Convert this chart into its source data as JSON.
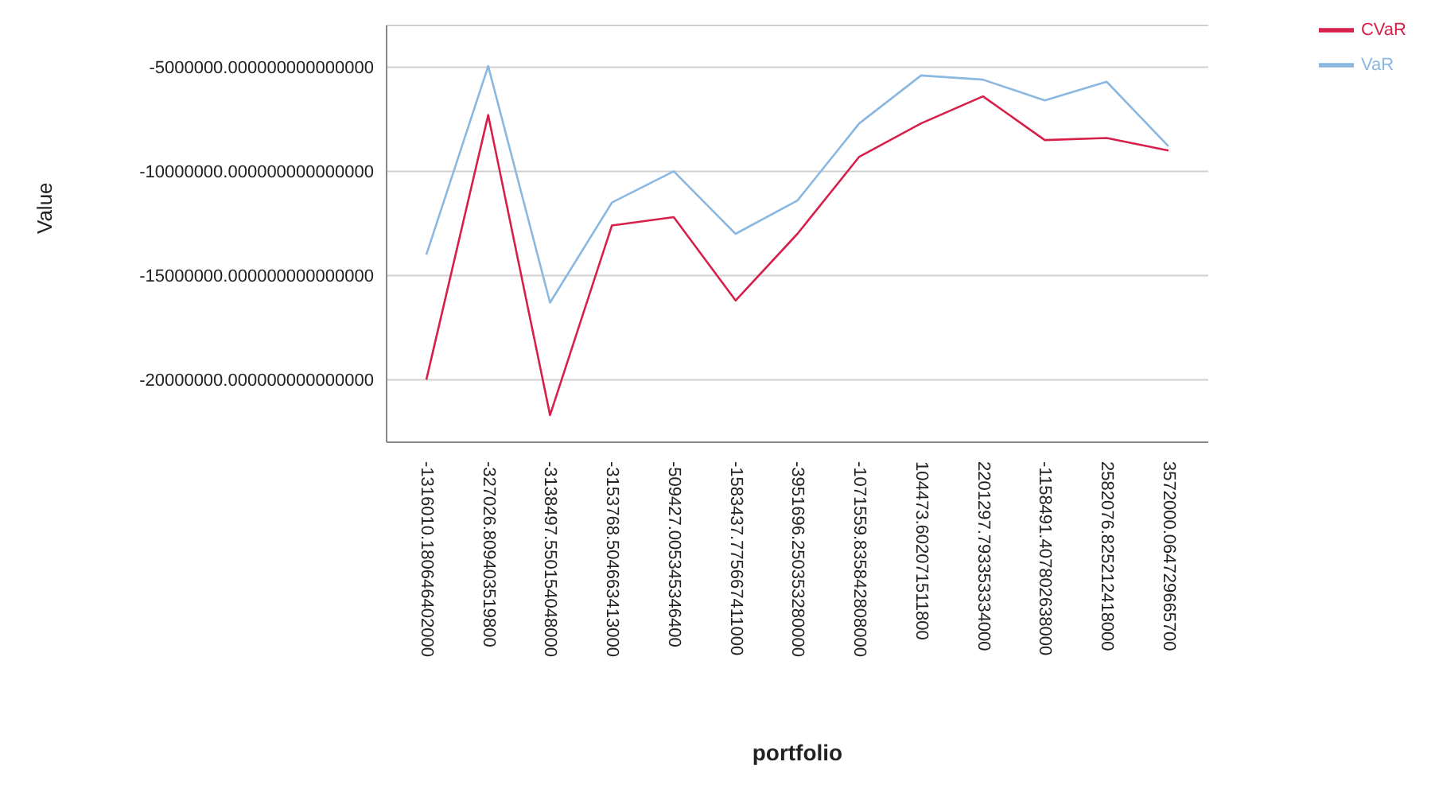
{
  "chart_data": {
    "type": "line",
    "xlabel": "portfolio",
    "ylabel": "Value",
    "categories": [
      "-1316010.180646402000",
      "-327026.809403519800",
      "-3138497.550154048000",
      "-3153768.504663413000",
      "-509427.005345346400",
      "-1583437.775667411000",
      "-3951696.250353280000",
      "-1071559.835842808000",
      "104473.602071511800",
      "2201297.793353334000",
      "-1158491.407802638000",
      "2582076.825212418000",
      "3572000.064729665700"
    ],
    "series": [
      {
        "name": "VaR",
        "color": "#8ab8e0",
        "values": [
          -14000000,
          -4950000,
          -16300000,
          -11500000,
          -10000000,
          -13000000,
          -11400000,
          -7700000,
          -5400000,
          -5600000,
          -6600000,
          -5700000,
          -8800000
        ]
      },
      {
        "name": "CVaR",
        "color": "#d6204a",
        "values": [
          -20000000,
          -7300000,
          -21700000,
          -12600000,
          -12200000,
          -16200000,
          -13000000,
          -9300000,
          -7700000,
          -6400000,
          -8500000,
          -8400000,
          -9000000
        ]
      }
    ],
    "ylim": [
      -23000000,
      -3000000
    ],
    "yticks": [
      {
        "value": -5000000,
        "label": "-5000000.000000000000000"
      },
      {
        "value": -10000000,
        "label": "-10000000.000000000000000"
      },
      {
        "value": -15000000,
        "label": "-15000000.000000000000000"
      },
      {
        "value": -20000000,
        "label": "-20000000.000000000000000"
      }
    ],
    "grid": "y",
    "legend": "top right",
    "marker": "none",
    "line_style": "solid"
  }
}
